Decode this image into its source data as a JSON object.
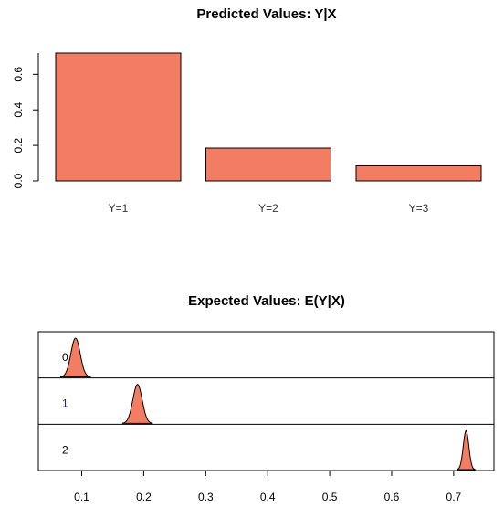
{
  "colors": {
    "fill": "#F27D62",
    "stroke": "#000000"
  },
  "chart_data": [
    {
      "type": "bar",
      "title": "Predicted Values: Y|X",
      "categories": [
        "Y=1",
        "Y=2",
        "Y=3"
      ],
      "values": [
        0.72,
        0.185,
        0.085
      ],
      "ylim": [
        0,
        0.72
      ],
      "yticks": [
        "0.0",
        "0.2",
        "0.4",
        "0.6"
      ],
      "xlabel": "",
      "ylabel": "",
      "grid": false
    },
    {
      "type": "area",
      "title": "Expected Values: E(Y|X)",
      "xlim": [
        0.03,
        0.765
      ],
      "xticks": [
        "0.1",
        "0.2",
        "0.3",
        "0.4",
        "0.5",
        "0.6",
        "0.7"
      ],
      "rows": [
        {
          "label": "0",
          "mean": 0.09,
          "sd": 0.0075
        },
        {
          "label": "1",
          "mean": 0.19,
          "sd": 0.0075
        },
        {
          "label": "2",
          "mean": 0.72,
          "sd": 0.0045
        }
      ],
      "xlabel": "",
      "ylabel": "",
      "grid": false
    }
  ]
}
